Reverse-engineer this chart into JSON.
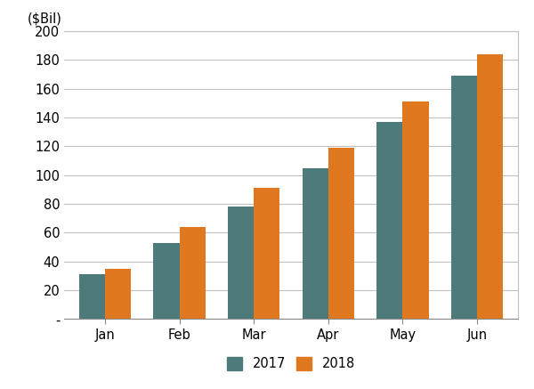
{
  "months": [
    "Jan",
    "Feb",
    "Mar",
    "Apr",
    "May",
    "Jun"
  ],
  "values_2017": [
    31,
    53,
    78,
    105,
    137,
    169
  ],
  "values_2018": [
    35,
    64,
    91,
    119,
    151,
    184
  ],
  "color_2017": "#4d7b7b",
  "color_2018": "#e07820",
  "ylabel_text": "($Bil)",
  "ylim": [
    0,
    200
  ],
  "yticks": [
    0,
    20,
    40,
    60,
    80,
    100,
    120,
    140,
    160,
    180,
    200
  ],
  "ytick_labels": [
    "-",
    "20",
    "40",
    "60",
    "80",
    "100",
    "120",
    "140",
    "160",
    "180",
    "200"
  ],
  "legend_labels": [
    "2017",
    "2018"
  ],
  "bar_width": 0.35,
  "background_color": "#ffffff",
  "grid_color": "#c0c0c0"
}
